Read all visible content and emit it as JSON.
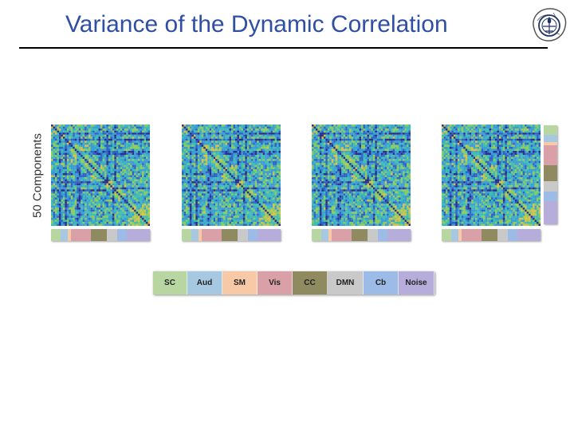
{
  "slide": {
    "title": "Variance of the Dynamic Correlation",
    "y_label": "50 Components"
  },
  "logo": {
    "icon": "brain-seal-icon"
  },
  "networks": [
    {
      "label": "SC",
      "color": "#b7d6a1",
      "weight": 3
    },
    {
      "label": "Aud",
      "color": "#a6c8e0",
      "weight": 2
    },
    {
      "label": "SM",
      "color": "#f8c9a6",
      "weight": 1
    },
    {
      "label": "Vis",
      "color": "#d9a0a8",
      "weight": 6
    },
    {
      "label": "CC",
      "color": "#8f8a5f",
      "weight": 5
    },
    {
      "label": "DMN",
      "color": "#c9c9c9",
      "weight": 3
    },
    {
      "label": "Cb",
      "color": "#9cbbe6",
      "weight": 3
    },
    {
      "label": "Noise",
      "color": "#b6addb",
      "weight": 7
    }
  ],
  "matrices": {
    "count": 4,
    "components": 50,
    "colormap": [
      "#2a2f8a",
      "#2f63c4",
      "#3c9bd6",
      "#3fbcb4",
      "#8ccc5e",
      "#d8c04a"
    ]
  }
}
